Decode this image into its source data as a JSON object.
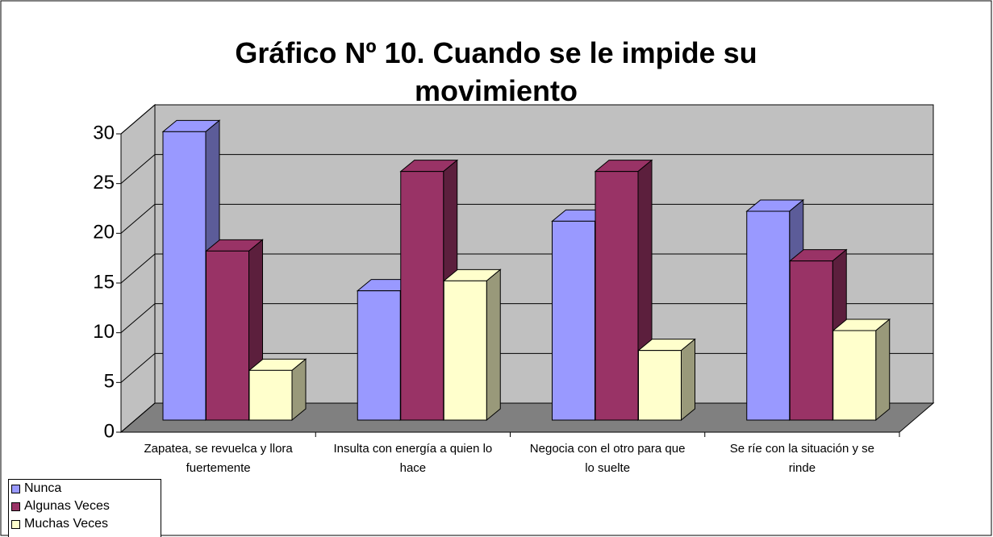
{
  "chart_data": {
    "type": "bar3d",
    "title": "Gráfico Nº 10. Cuando se le impide su movimiento",
    "categories": [
      "Zapatea, se revuelca y llora fuertemente",
      "Insulta con energía a quien lo hace",
      "Negocia con el otro para que lo suelte",
      "Se ríe con la situación y se rinde"
    ],
    "series": [
      {
        "name": "Nunca",
        "color": "#9999ff",
        "values": [
          29,
          13,
          20,
          21
        ]
      },
      {
        "name": "Algunas Veces",
        "color": "#993366",
        "values": [
          17,
          25,
          25,
          16
        ]
      },
      {
        "name": "Muchas Veces",
        "color": "#ffffcc",
        "values": [
          5,
          14,
          7,
          9
        ]
      }
    ],
    "ylim": [
      0,
      30
    ],
    "yticks": [
      0,
      5,
      10,
      15,
      20,
      25,
      30
    ],
    "grid": true,
    "legend": "bottom-left"
  }
}
